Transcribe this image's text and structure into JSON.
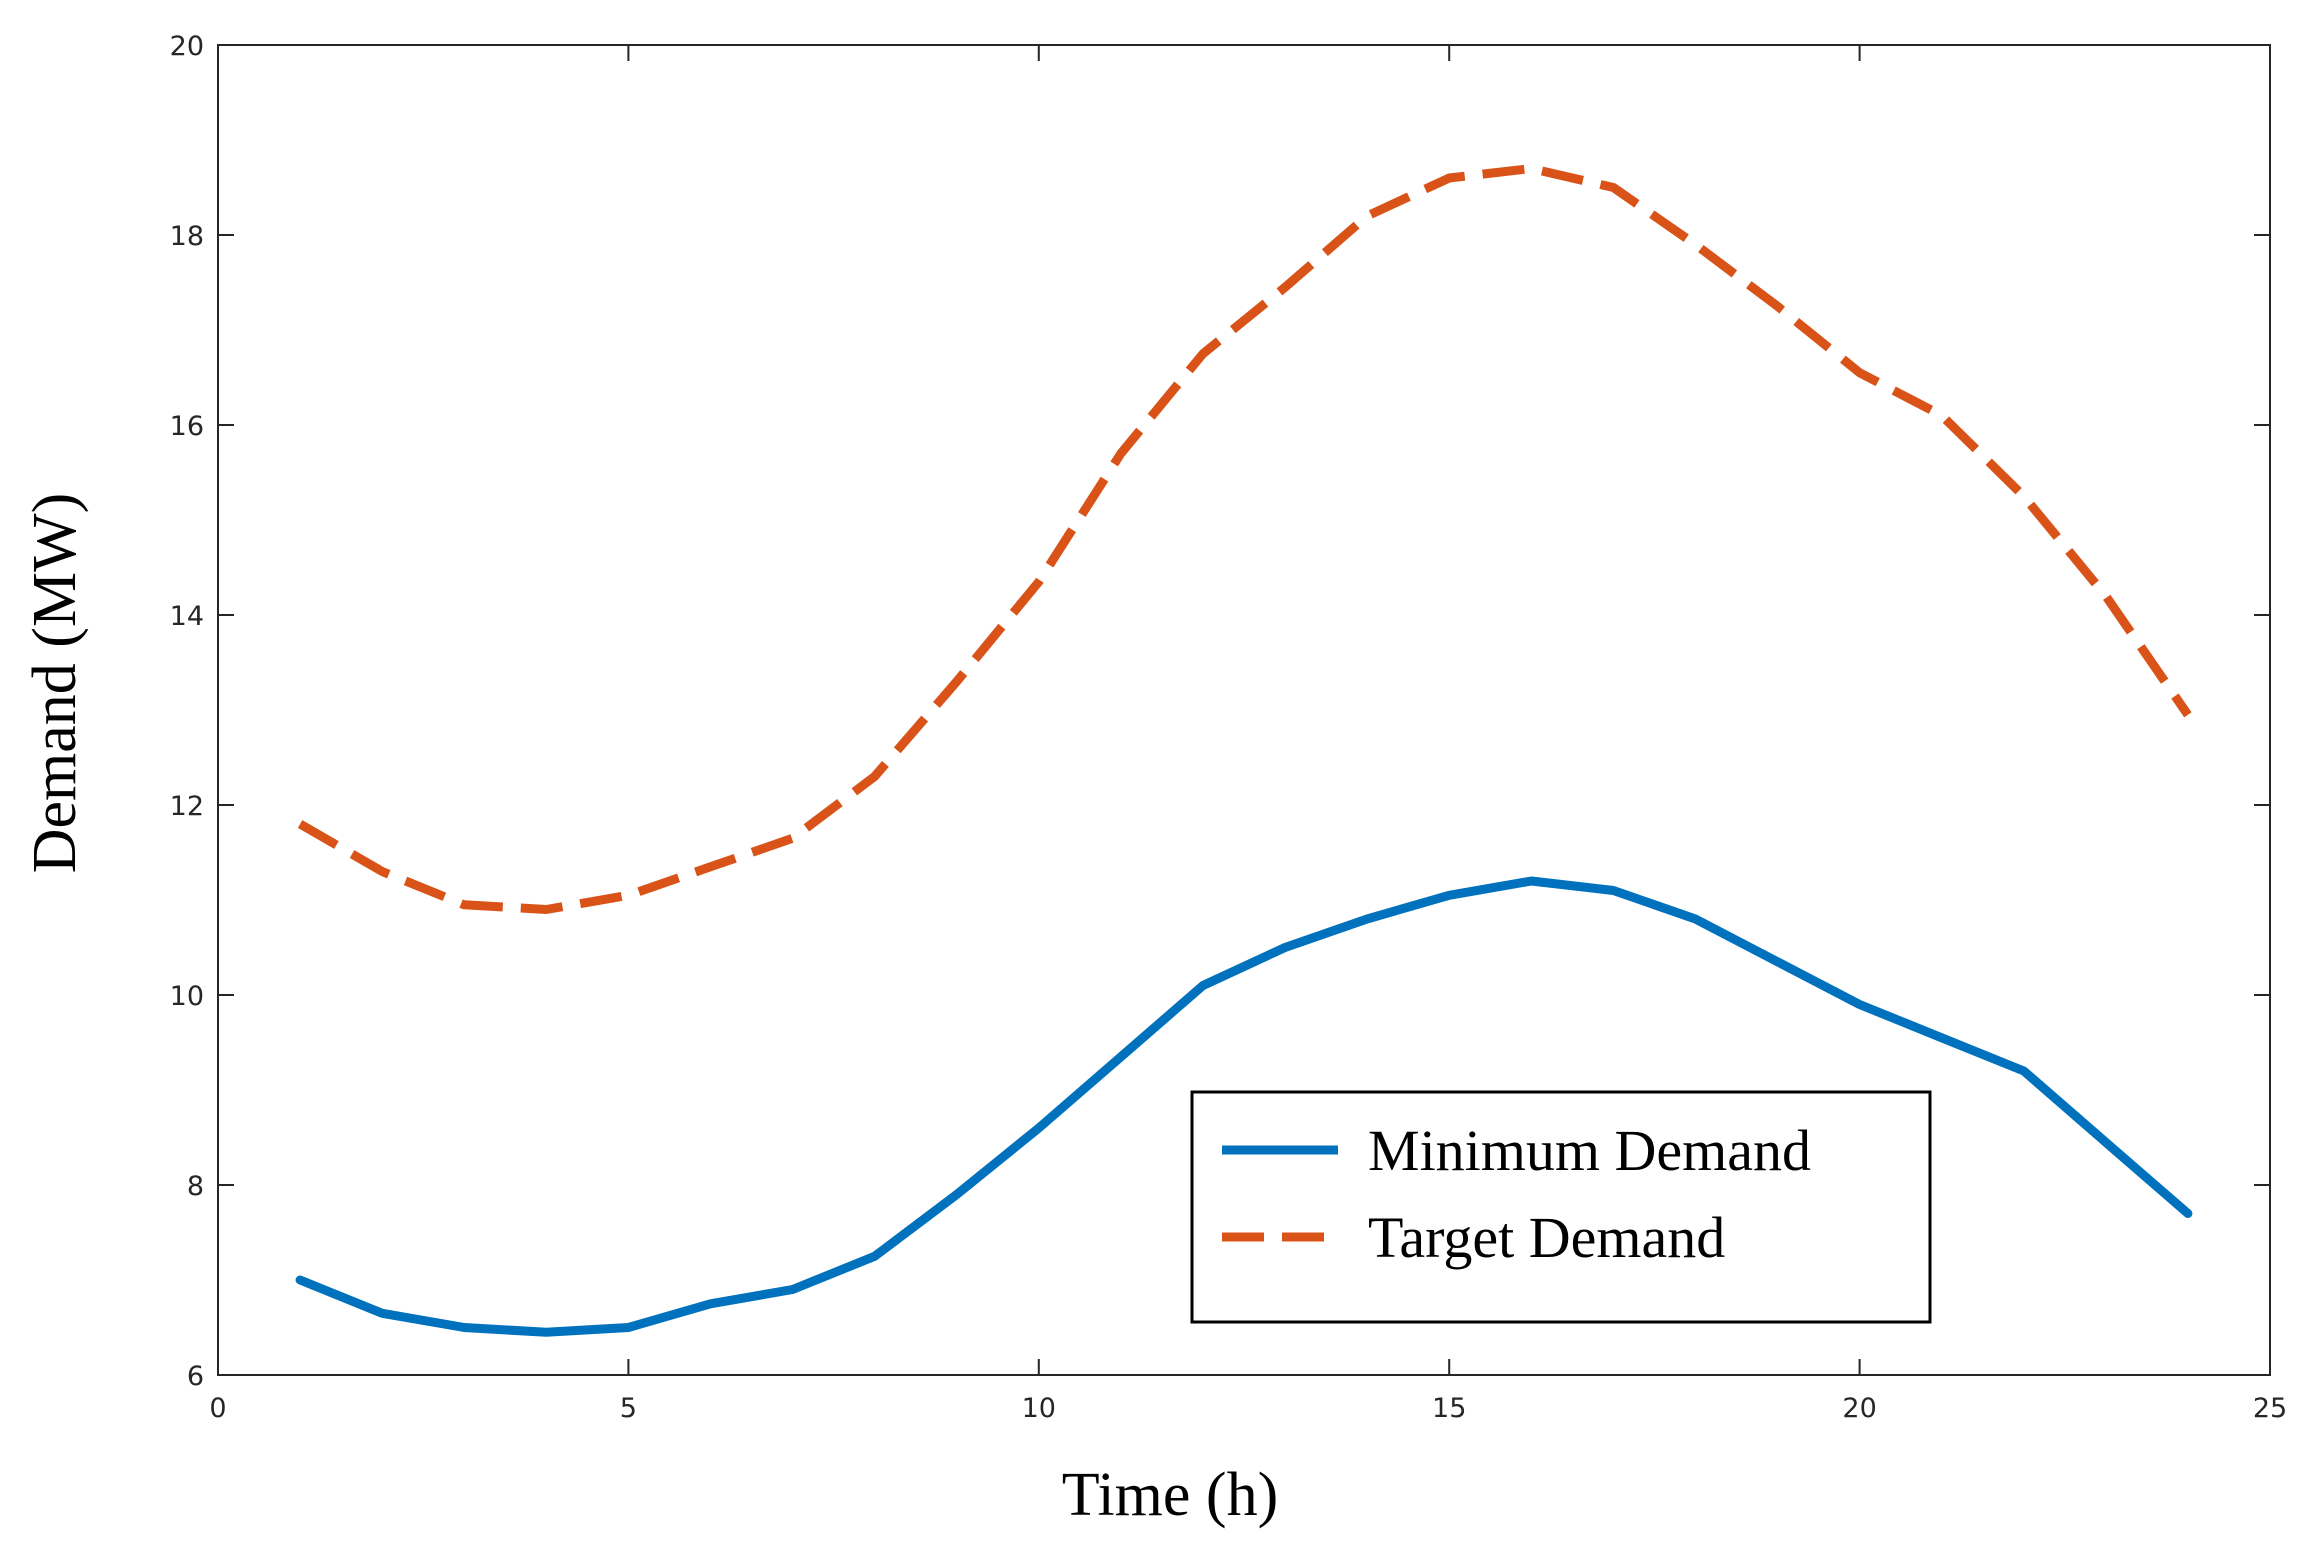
{
  "chart_data": {
    "type": "line",
    "title": "",
    "xlabel": "Time (h)",
    "ylabel": "Demand (MW)",
    "xlim": [
      0,
      25
    ],
    "ylim": [
      6,
      20
    ],
    "xticks": [
      0,
      5,
      10,
      15,
      20,
      25
    ],
    "yticks": [
      6,
      8,
      10,
      12,
      14,
      16,
      18,
      20
    ],
    "grid": false,
    "legend_position": "lower-right",
    "x": [
      1,
      2,
      3,
      4,
      5,
      6,
      7,
      8,
      9,
      10,
      11,
      12,
      13,
      14,
      15,
      16,
      17,
      18,
      19,
      20,
      21,
      22,
      23,
      24
    ],
    "series": [
      {
        "name": "Minimum Demand",
        "color": "#0072BD",
        "style": "solid",
        "values": [
          7.0,
          6.65,
          6.5,
          6.45,
          6.5,
          6.75,
          6.9,
          7.25,
          7.9,
          8.6,
          9.35,
          10.1,
          10.5,
          10.8,
          11.05,
          11.2,
          11.1,
          10.8,
          10.35,
          9.9,
          9.55,
          9.2,
          8.45,
          7.7
        ]
      },
      {
        "name": "Target Demand",
        "color": "#D95319",
        "style": "dashed",
        "values": [
          11.8,
          11.3,
          10.95,
          10.9,
          11.05,
          11.35,
          11.65,
          12.3,
          13.3,
          14.35,
          15.7,
          16.75,
          17.45,
          18.2,
          18.6,
          18.7,
          18.5,
          17.9,
          17.25,
          16.55,
          16.1,
          15.25,
          14.2,
          12.95
        ]
      }
    ]
  }
}
